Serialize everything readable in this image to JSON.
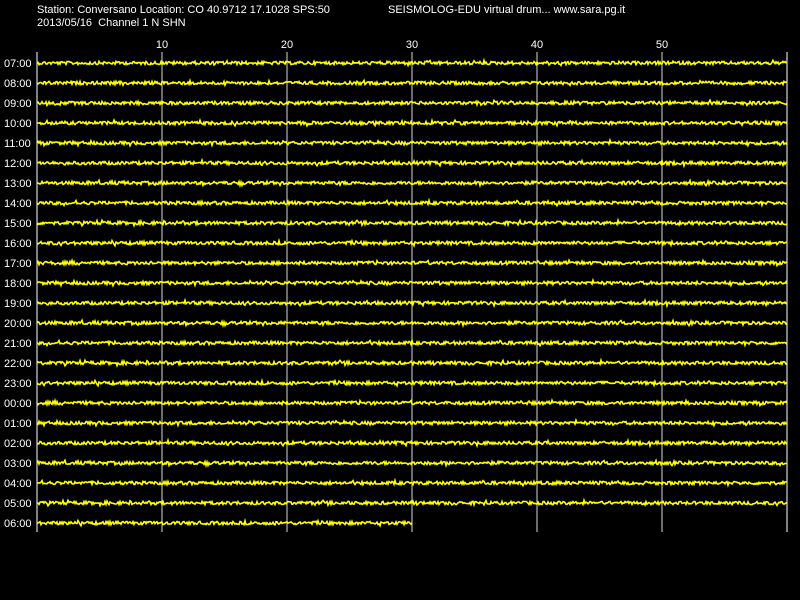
{
  "header": {
    "station_line": "Station: Conversano Location: CO 40.9712 17.1028 SPS:50",
    "date_line": "2013/05/16  Channel 1 N SHN",
    "app_line": "SEISMOLOG-EDU virtual drum... www.sara.pg.it"
  },
  "chart_data": {
    "type": "line",
    "x_ticks": [
      "10",
      "20",
      "30",
      "40",
      "50"
    ],
    "x_tick_values": [
      10,
      20,
      30,
      40,
      50
    ],
    "xlim": [
      0,
      60
    ],
    "grid": true,
    "rows": [
      {
        "label": "07:00",
        "end_minute": 60
      },
      {
        "label": "08:00",
        "end_minute": 60
      },
      {
        "label": "09:00",
        "end_minute": 60
      },
      {
        "label": "10:00",
        "end_minute": 60
      },
      {
        "label": "11:00",
        "end_minute": 60
      },
      {
        "label": "12:00",
        "end_minute": 60
      },
      {
        "label": "13:00",
        "end_minute": 60
      },
      {
        "label": "14:00",
        "end_minute": 60
      },
      {
        "label": "15:00",
        "end_minute": 60
      },
      {
        "label": "16:00",
        "end_minute": 60
      },
      {
        "label": "17:00",
        "end_minute": 60
      },
      {
        "label": "18:00",
        "end_minute": 60
      },
      {
        "label": "19:00",
        "end_minute": 60
      },
      {
        "label": "20:00",
        "end_minute": 60
      },
      {
        "label": "21:00",
        "end_minute": 60
      },
      {
        "label": "22:00",
        "end_minute": 60
      },
      {
        "label": "23:00",
        "end_minute": 60
      },
      {
        "label": "00:00",
        "end_minute": 60
      },
      {
        "label": "01:00",
        "end_minute": 60
      },
      {
        "label": "02:00",
        "end_minute": 60
      },
      {
        "label": "03:00",
        "end_minute": 60
      },
      {
        "label": "04:00",
        "end_minute": 60
      },
      {
        "label": "05:00",
        "end_minute": 60
      },
      {
        "label": "06:00",
        "end_minute": 30
      }
    ],
    "colors": {
      "trace": "#ffff00",
      "grid": "#ffffff",
      "background": "#000000"
    }
  }
}
